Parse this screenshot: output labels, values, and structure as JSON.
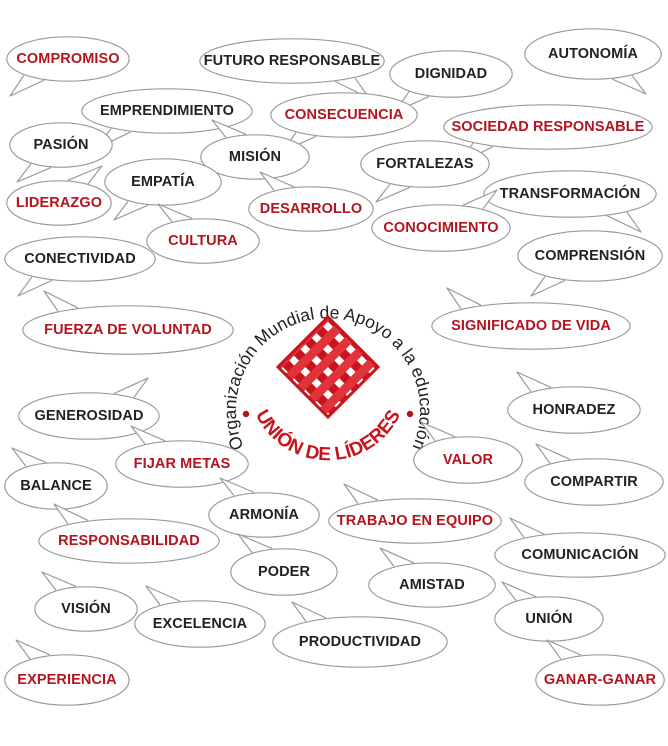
{
  "colors": {
    "red": "#b3141e",
    "dark": "#222222",
    "bubble_stroke": "#9a9a9a",
    "bubble_fill": "#ffffff"
  },
  "logo": {
    "ring_text": "Organización Mundial de Apoyo a la educación",
    "brand_text": "UNIÓN DE LÍDERES",
    "icon": "woven-lattice-icon"
  },
  "words": [
    {
      "id": "compromiso",
      "text": "COMPROMISO",
      "color": "red"
    },
    {
      "id": "futuro-responsable",
      "text": "FUTURO RESPONSABLE",
      "color": "dark"
    },
    {
      "id": "dignidad",
      "text": "DIGNIDAD",
      "color": "dark"
    },
    {
      "id": "autonomia",
      "text": "AUTONOMÍA",
      "color": "dark"
    },
    {
      "id": "emprendimiento",
      "text": "EMPRENDIMIENTO",
      "color": "dark"
    },
    {
      "id": "consecuencia",
      "text": "CONSECUENCIA",
      "color": "red"
    },
    {
      "id": "sociedad-responsable",
      "text": "SOCIEDAD RESPONSABLE",
      "color": "red"
    },
    {
      "id": "pasion",
      "text": "PASIÓN",
      "color": "dark"
    },
    {
      "id": "mision",
      "text": "MISIÓN",
      "color": "dark"
    },
    {
      "id": "fortalezas",
      "text": "FORTALEZAS",
      "color": "dark"
    },
    {
      "id": "empatia",
      "text": "EMPATÍA",
      "color": "dark"
    },
    {
      "id": "liderazgo",
      "text": "LIDERAZGO",
      "color": "red"
    },
    {
      "id": "transformacion",
      "text": "TRANSFORMACIÓN",
      "color": "dark"
    },
    {
      "id": "desarrollo",
      "text": "DESARROLLO",
      "color": "red"
    },
    {
      "id": "conocimiento",
      "text": "CONOCIMIENTO",
      "color": "red"
    },
    {
      "id": "cultura",
      "text": "CULTURA",
      "color": "red"
    },
    {
      "id": "conectividad",
      "text": "CONECTIVIDAD",
      "color": "dark"
    },
    {
      "id": "comprension",
      "text": "COMPRENSIÓN",
      "color": "dark"
    },
    {
      "id": "fuerza-de-voluntad",
      "text": "FUERZA DE VOLUNTAD",
      "color": "red"
    },
    {
      "id": "significado-de-vida",
      "text": "SIGNIFICADO DE VIDA",
      "color": "red"
    },
    {
      "id": "honradez",
      "text": "HONRADEZ",
      "color": "dark"
    },
    {
      "id": "generosidad",
      "text": "GENEROSIDAD",
      "color": "dark"
    },
    {
      "id": "valor",
      "text": "VALOR",
      "color": "red"
    },
    {
      "id": "fijar-metas",
      "text": "FIJAR METAS",
      "color": "red"
    },
    {
      "id": "compartir",
      "text": "COMPARTIR",
      "color": "dark"
    },
    {
      "id": "balance",
      "text": "BALANCE",
      "color": "dark"
    },
    {
      "id": "armonia",
      "text": "ARMONÍA",
      "color": "dark"
    },
    {
      "id": "trabajo-en-equipo",
      "text": "TRABAJO EN EQUIPO",
      "color": "red"
    },
    {
      "id": "responsabilidad",
      "text": "RESPONSABILIDAD",
      "color": "red"
    },
    {
      "id": "comunicacion",
      "text": "COMUNICACIÓN",
      "color": "dark"
    },
    {
      "id": "poder",
      "text": "PODER",
      "color": "dark"
    },
    {
      "id": "amistad",
      "text": "AMISTAD",
      "color": "dark"
    },
    {
      "id": "vision",
      "text": "VISIÓN",
      "color": "dark"
    },
    {
      "id": "excelencia",
      "text": "EXCELENCIA",
      "color": "dark"
    },
    {
      "id": "union",
      "text": "UNIÓN",
      "color": "dark"
    },
    {
      "id": "productividad",
      "text": "PRODUCTIVIDAD",
      "color": "dark"
    },
    {
      "id": "experiencia",
      "text": "EXPERIENCIA",
      "color": "red"
    },
    {
      "id": "ganar-ganar",
      "text": "GANAR-GANAR",
      "color": "red"
    }
  ]
}
